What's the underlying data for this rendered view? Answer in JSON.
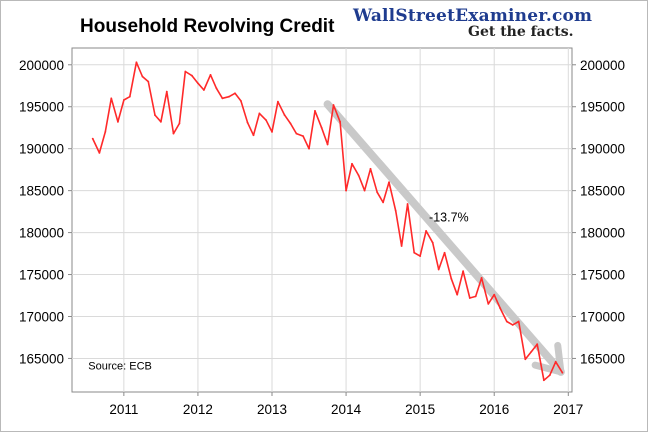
{
  "header": {
    "title": "Household Revolving Credit",
    "brand": "WallStreetExaminer.com",
    "tagline": "Get the facts."
  },
  "chart_data": {
    "type": "line",
    "title": "Household Revolving Credit",
    "xlabel": "",
    "ylabel": "",
    "xlim": [
      2010.3,
      2017.05
    ],
    "ylim": [
      161000,
      202000
    ],
    "x_ticks": [
      "2011",
      "2012",
      "2013",
      "2014",
      "2015",
      "2016",
      "2017"
    ],
    "y_ticks": [
      165000,
      170000,
      175000,
      180000,
      185000,
      190000,
      195000,
      200000
    ],
    "grid": true,
    "series": [
      {
        "color": "#ff2a2a",
        "x": [
          2010.58,
          2010.67,
          2010.75,
          2010.83,
          2010.92,
          2011.0,
          2011.08,
          2011.17,
          2011.25,
          2011.33,
          2011.42,
          2011.5,
          2011.58,
          2011.67,
          2011.75,
          2011.83,
          2011.92,
          2012.0,
          2012.08,
          2012.17,
          2012.25,
          2012.33,
          2012.42,
          2012.5,
          2012.58,
          2012.67,
          2012.75,
          2012.83,
          2012.92,
          2013.0,
          2013.08,
          2013.17,
          2013.25,
          2013.33,
          2013.42,
          2013.5,
          2013.58,
          2013.67,
          2013.75,
          2013.83,
          2013.92,
          2014.0,
          2014.08,
          2014.17,
          2014.25,
          2014.33,
          2014.42,
          2014.5,
          2014.58,
          2014.67,
          2014.75,
          2014.83,
          2014.92,
          2015.0,
          2015.08,
          2015.17,
          2015.25,
          2015.33,
          2015.42,
          2015.5,
          2015.58,
          2015.67,
          2015.75,
          2015.83,
          2015.92,
          2016.0,
          2016.08,
          2016.17,
          2016.25,
          2016.33,
          2016.42,
          2016.5,
          2016.58,
          2016.67,
          2016.75,
          2016.83,
          2016.92
        ],
        "y": [
          191200,
          189500,
          192000,
          196000,
          193200,
          195800,
          196200,
          200300,
          198600,
          198000,
          194000,
          193200,
          196800,
          191800,
          193000,
          199200,
          198700,
          197800,
          197000,
          198800,
          197200,
          196000,
          196200,
          196600,
          195700,
          193100,
          191600,
          194200,
          193400,
          192000,
          195600,
          194000,
          193000,
          191800,
          191500,
          190000,
          194500,
          192500,
          190500,
          195200,
          193200,
          185000,
          188200,
          186800,
          185000,
          187600,
          184800,
          183600,
          186000,
          182600,
          178400,
          183400,
          177600,
          177200,
          180200,
          178800,
          175600,
          177600,
          174500,
          172600,
          175400,
          172200,
          172400,
          174600,
          171500,
          172600,
          171000,
          169400,
          169000,
          169400,
          164900,
          165800,
          166700,
          162400,
          163000,
          164600,
          163300
        ]
      }
    ],
    "annotations": [
      {
        "text": "-13.7%",
        "x": 2015.12,
        "y": 181300
      },
      {
        "text": "Source: ECB",
        "x": 2010.52,
        "y": 163700
      }
    ],
    "trend_arrow": {
      "x1": 2013.75,
      "y1": 195300,
      "x2": 2016.9,
      "y2": 163400,
      "color": "#c9c9c9"
    }
  }
}
